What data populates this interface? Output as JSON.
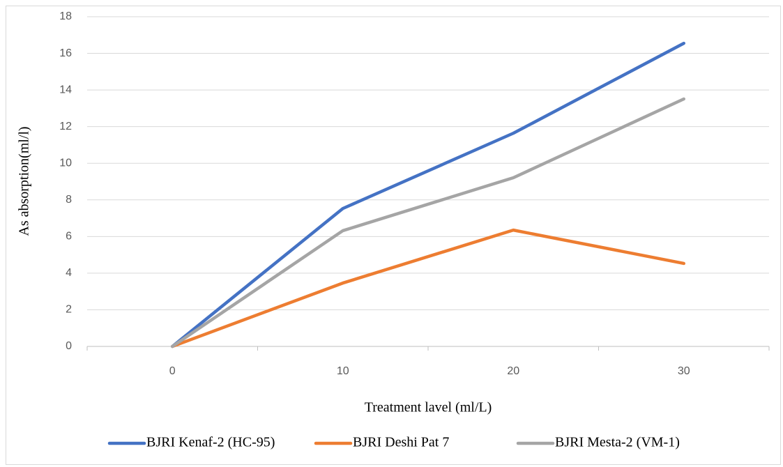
{
  "chart_data": {
    "type": "line",
    "x_label": "Treatment lavel (ml/L)",
    "y_label": "As absorption(ml/l)",
    "categories": [
      "0",
      "10",
      "20",
      "30"
    ],
    "series": [
      {
        "name": "BJRI Kenaf-2 (HC-95)",
        "color": "#4472c4",
        "values": [
          0,
          7.53,
          11.64,
          16.55
        ]
      },
      {
        "name": "BJRI Deshi Pat 7",
        "color": "#ed7d31",
        "values": [
          0,
          3.46,
          6.35,
          4.53
        ]
      },
      {
        "name": "BJRI Mesta-2 (VM-1)",
        "color": "#a5a5a5",
        "values": [
          0,
          6.32,
          9.21,
          13.51
        ]
      }
    ],
    "ylim": [
      0,
      18
    ],
    "yticks": [
      0,
      2,
      4,
      6,
      8,
      10,
      12,
      14,
      16,
      18
    ],
    "grid": true,
    "legend": "bottom"
  }
}
